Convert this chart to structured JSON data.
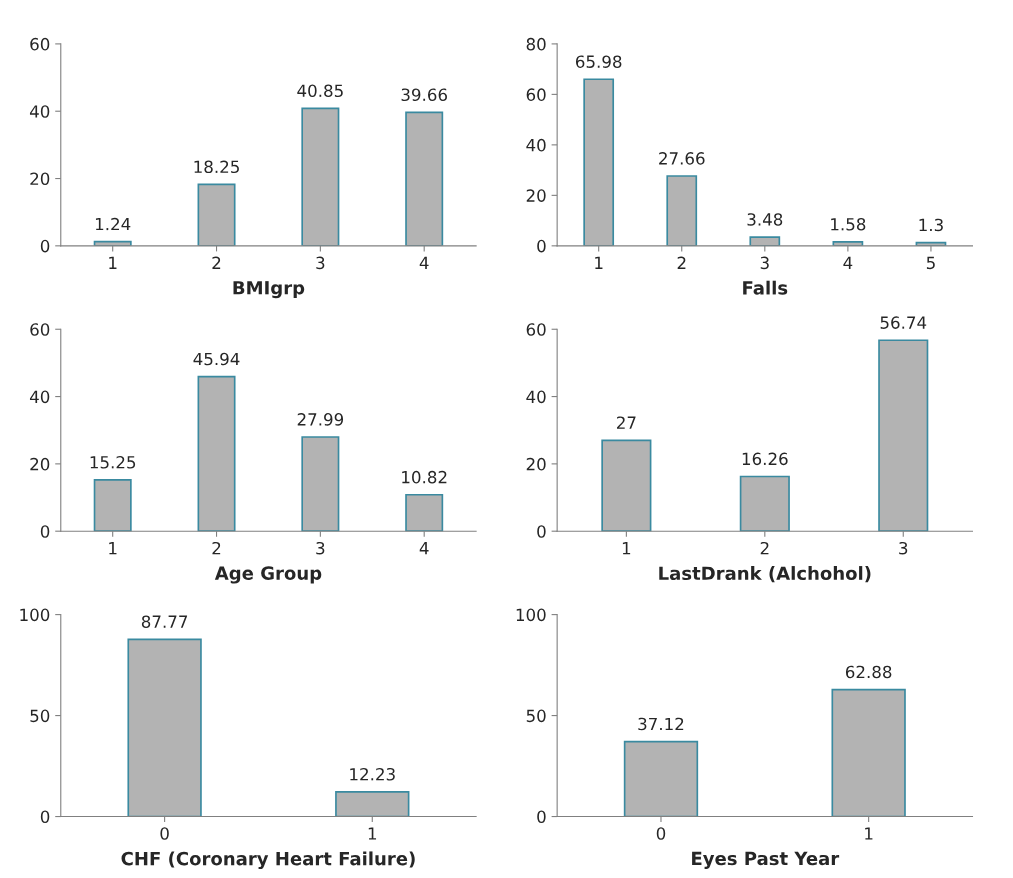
{
  "chart_data": [
    {
      "type": "bar",
      "xlabel": "BMIgrp",
      "categories": [
        "1",
        "2",
        "3",
        "4"
      ],
      "values": [
        1.24,
        18.25,
        40.85,
        39.66
      ],
      "color": "#b3b3b3",
      "ylim": [
        0,
        60
      ],
      "yticks": [
        0,
        20,
        40,
        60
      ],
      "data_labels": true,
      "grid": false,
      "legend": false
    },
    {
      "type": "bar",
      "xlabel": "Falls",
      "categories": [
        "1",
        "2",
        "3",
        "4",
        "5"
      ],
      "values": [
        65.98,
        27.66,
        3.48,
        1.58,
        1.3
      ],
      "color": "#b3b3b3",
      "ylim": [
        0,
        80
      ],
      "yticks": [
        0,
        20,
        40,
        60,
        80
      ],
      "data_labels": true,
      "grid": false,
      "legend": false
    },
    {
      "type": "bar",
      "xlabel": "Age Group",
      "categories": [
        "1",
        "2",
        "3",
        "4"
      ],
      "values": [
        15.25,
        45.94,
        27.99,
        10.82
      ],
      "color": "#b3b3b3",
      "ylim": [
        0,
        60
      ],
      "yticks": [
        0,
        20,
        40,
        60
      ],
      "data_labels": true,
      "grid": false,
      "legend": false
    },
    {
      "type": "bar",
      "xlabel": "LastDrank (Alchohol)",
      "categories": [
        "1",
        "2",
        "3"
      ],
      "values": [
        27,
        16.26,
        56.74
      ],
      "color": "#b3b3b3",
      "ylim": [
        0,
        60
      ],
      "yticks": [
        0,
        20,
        40,
        60
      ],
      "data_labels": true,
      "grid": false,
      "legend": false
    },
    {
      "type": "bar",
      "xlabel": "CHF (Coronary Heart Failure)",
      "categories": [
        "0",
        "1"
      ],
      "values": [
        87.77,
        12.23
      ],
      "color": "#b3b3b3",
      "ylim": [
        0,
        100
      ],
      "yticks": [
        0,
        50,
        100
      ],
      "data_labels": true,
      "grid": false,
      "legend": false
    },
    {
      "type": "bar",
      "xlabel": "Eyes Past Year",
      "categories": [
        "0",
        "1"
      ],
      "values": [
        37.12,
        62.88
      ],
      "color": "#b3b3b3",
      "ylim": [
        0,
        100
      ],
      "yticks": [
        0,
        50,
        100
      ],
      "data_labels": true,
      "grid": false,
      "legend": false
    }
  ]
}
